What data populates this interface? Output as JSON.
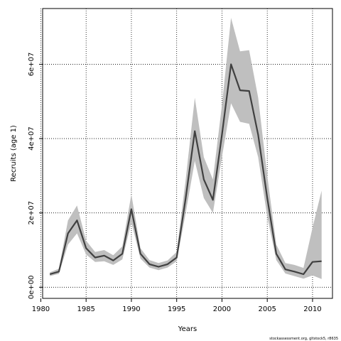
{
  "chart_data": {
    "type": "line",
    "title": "",
    "xlabel": "Years",
    "ylabel": "Recruits (age 1)",
    "xlim": [
      1980.2,
      1982.2
    ],
    "x_range": [
      1980.2,
      2012.2
    ],
    "ylim": [
      -3000000,
      75000000
    ],
    "x_ticks": [
      1980,
      1985,
      1990,
      1995,
      2000,
      2005,
      2010
    ],
    "x_tick_labels": [
      "1980",
      "1985",
      "1990",
      "1995",
      "2000",
      "2005",
      "2010"
    ],
    "y_ticks": [
      0,
      20000000,
      40000000,
      60000000
    ],
    "y_tick_labels": [
      "0e+00",
      "2e+07",
      "4e+07",
      "6e+07"
    ],
    "grid": true,
    "legend": "none",
    "colors": {
      "line": "#404040",
      "band": "#bfbfbf",
      "grid": "#000000"
    },
    "series": [
      {
        "x": [
          1981,
          1982,
          1983,
          1984,
          1985,
          1986,
          1987,
          1988,
          1989,
          1990,
          1991,
          1992,
          1993,
          1994,
          1995,
          1996,
          1997,
          1998,
          1999,
          2000,
          2001,
          2002,
          2003,
          2004,
          2005,
          2006,
          2007,
          2008,
          2009,
          2010,
          2011
        ],
        "y": [
          3500000,
          4200000,
          14500000,
          18000000,
          10500000,
          8000000,
          8500000,
          7200000,
          9000000,
          21000000,
          9000000,
          6200000,
          5500000,
          6200000,
          8000000,
          24000000,
          42000000,
          29000000,
          23500000,
          41000000,
          60000000,
          53000000,
          52800000,
          41000000,
          24000000,
          9000000,
          4800000,
          4200000,
          3500000,
          6800000,
          7000000
        ],
        "lower": [
          3000000,
          3600000,
          11500000,
          14500000,
          8800000,
          6800000,
          7000000,
          6000000,
          7500000,
          17500000,
          7700000,
          5300000,
          4600000,
          5300000,
          7000000,
          20000000,
          34000000,
          24000000,
          20000000,
          35000000,
          49500000,
          44500000,
          44000000,
          35000000,
          19000000,
          7300000,
          3700000,
          3000000,
          2300000,
          3200000,
          2200000
        ],
        "upper": [
          4000000,
          5000000,
          18000000,
          22000000,
          12500000,
          9500000,
          10000000,
          8600000,
          11000000,
          25000000,
          10500000,
          7300000,
          6500000,
          7200000,
          9500000,
          29000000,
          51000000,
          35000000,
          29000000,
          49000000,
          72500000,
          63500000,
          63800000,
          51000000,
          30000000,
          11500000,
          6500000,
          6000000,
          5200000,
          16000000,
          26000000
        ]
      }
    ]
  },
  "footer": "stockassessment.org, gltstock5, r8635"
}
